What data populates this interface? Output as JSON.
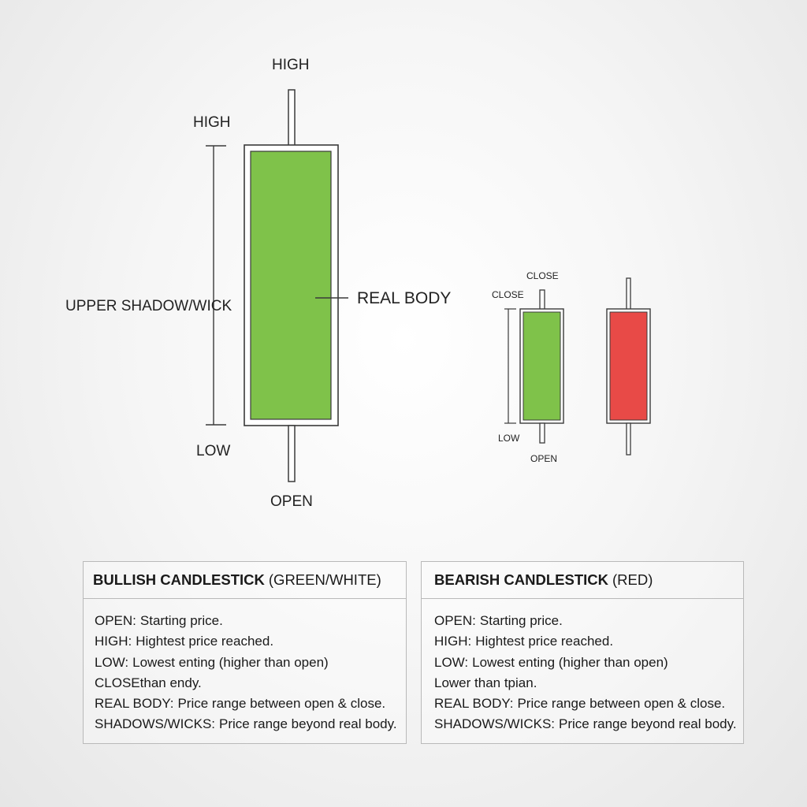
{
  "colors": {
    "bullish": "#7fc24a",
    "bearish": "#e84a47",
    "outline": "#3a3a3a"
  },
  "big_candle": {
    "label_high_top": "HIGH",
    "label_high_left": "HIGH",
    "label_upper_shadow": "UPPER SHADOW/WICK",
    "label_real_body": "REAL BODY",
    "label_low": "LOW",
    "label_open": "OPEN"
  },
  "small_candles": {
    "label_close_top": "CLOSE",
    "label_close_left": "CLOSE",
    "label_low": "LOW",
    "label_open": "OPEN"
  },
  "panels": [
    {
      "title_bold": "BULLISH CANDLESTICK",
      "title_rest": "(GREEN/WHITE)",
      "rows": [
        {
          "term": "OPEN:",
          "desc": "Starting price."
        },
        {
          "term": "HIGH:",
          "desc": "Hightest price reached."
        },
        {
          "term": "LOW:",
          "desc": "Lowest enting (higher than open)"
        },
        {
          "term": "CLOSE",
          "desc": "than endy."
        },
        {
          "term": "REAL BODY:",
          "desc": "Price range between open & close."
        },
        {
          "term": "SHADOWS/WICKS:",
          "desc": "Price range beyond real body."
        }
      ]
    },
    {
      "title_bold": "BEARISH CANDLESTICK",
      "title_rest": "(RED)",
      "rows": [
        {
          "term": "OPEN:",
          "desc": "Starting price."
        },
        {
          "term": "HIGH:",
          "desc": "Hightest price reached."
        },
        {
          "term": "LOW:",
          "desc": "Lowest enting (higher than open)"
        },
        {
          "term": "",
          "desc": "Lower than tpian."
        },
        {
          "term": "REAL BODY:",
          "desc": "Price range between open & close."
        },
        {
          "term": "SHADOWS/WICKS:",
          "desc": "Price range beyond real body."
        }
      ]
    }
  ]
}
